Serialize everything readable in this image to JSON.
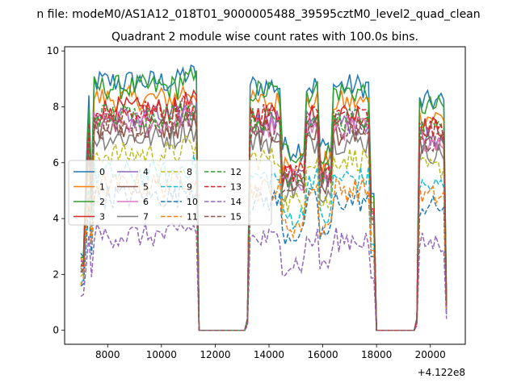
{
  "chart_data": {
    "type": "line",
    "suptitle": "n file: modeM0/AS1A12_018T01_9000005488_39595cztM0_level2_quad_clean",
    "title": "Quadrant 2 module wise count rates with 100.0s bins.",
    "xlabel": "",
    "ylabel": "",
    "offset_label": "+4.122e8",
    "xlim": [
      6400,
      21300
    ],
    "ylim": [
      -0.5,
      10.15
    ],
    "xticks": [
      8000,
      10000,
      12000,
      14000,
      16000,
      18000,
      20000
    ],
    "xtick_labels": [
      "8000",
      "10000",
      "12000",
      "14000",
      "16000",
      "18000",
      "20000"
    ],
    "yticks": [
      0,
      2,
      4,
      6,
      8,
      10
    ],
    "ytick_labels": [
      "0",
      "2",
      "4",
      "6",
      "8",
      "10"
    ],
    "grid": false,
    "legend": {
      "placement": "center-left",
      "ncol": 4
    },
    "segments": [
      [
        7000,
        11300
      ],
      [
        13200,
        17900
      ],
      [
        19500,
        20600
      ]
    ],
    "zero_ranges": [
      [
        11400,
        13100
      ],
      [
        18000,
        19400
      ]
    ],
    "series": [
      {
        "name": "0",
        "color": "#1f77b4",
        "dash": "solid",
        "level": 8.9
      },
      {
        "name": "1",
        "color": "#ff7f0e",
        "dash": "solid",
        "level": 8.3
      },
      {
        "name": "2",
        "color": "#2ca02c",
        "dash": "solid",
        "level": 8.7
      },
      {
        "name": "3",
        "color": "#d62728",
        "dash": "solid",
        "level": 7.9
      },
      {
        "name": "4",
        "color": "#9467bd",
        "dash": "solid",
        "level": 7.6
      },
      {
        "name": "5",
        "color": "#8c564b",
        "dash": "solid",
        "level": 7.2
      },
      {
        "name": "6",
        "color": "#e377c2",
        "dash": "solid",
        "level": 7.4
      },
      {
        "name": "7",
        "color": "#7f7f7f",
        "dash": "solid",
        "level": 6.9
      },
      {
        "name": "8",
        "color": "#bcbd22",
        "dash": "dashed",
        "level": 6.3
      },
      {
        "name": "9",
        "color": "#17becf",
        "dash": "dashed",
        "level": 5.6
      },
      {
        "name": "10",
        "color": "#1f77b4",
        "dash": "dashed",
        "level": 4.8
      },
      {
        "name": "11",
        "color": "#ff7f0e",
        "dash": "dashed",
        "level": 5.2
      },
      {
        "name": "12",
        "color": "#2ca02c",
        "dash": "dashed",
        "level": 7.7
      },
      {
        "name": "13",
        "color": "#d62728",
        "dash": "dashed",
        "level": 7.8
      },
      {
        "name": "14",
        "color": "#9467bd",
        "dash": "dashed",
        "level": 3.4
      },
      {
        "name": "15",
        "color": "#8c564b",
        "dash": "dashed",
        "level": 7.3
      }
    ]
  }
}
